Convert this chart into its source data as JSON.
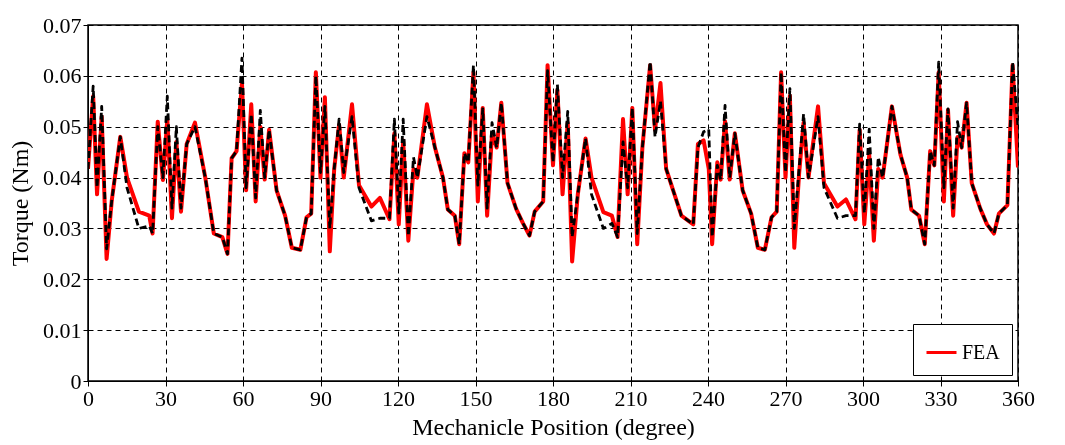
{
  "chart_data": {
    "type": "line",
    "xlabel": "Mechanicle Position (degree)",
    "ylabel": "Torque (Nm)",
    "x": [
      0,
      2,
      3.5,
      5.3,
      7.2,
      9.2,
      12.5,
      15.1,
      19.7,
      23.7,
      25,
      27,
      29,
      30.7,
      32.5,
      34.2,
      36,
      38.2,
      41.4,
      45.4,
      48.7,
      52,
      54,
      55.6,
      57.5,
      59.6,
      61.2,
      63.2,
      64.9,
      66.7,
      68.4,
      70.1,
      73,
      76.3,
      78.9,
      82.2,
      84.6,
      86.4,
      88.2,
      90,
      91.7,
      93.6,
      95.3,
      97.2,
      99,
      102.2,
      104.9,
      109.7,
      113,
      116.7,
      118.6,
      120.3,
      122,
      124,
      126,
      127.5,
      131.2,
      134.3,
      137.4,
      139.3,
      142,
      143.7,
      145.7,
      147.2,
      149.2,
      150.9,
      152.8,
      154.5,
      156.4,
      158.2,
      160,
      162.4,
      165.7,
      168.3,
      170.9,
      172.9,
      176.2,
      177.9,
      180,
      181.7,
      183.7,
      185.7,
      187.4,
      189.6,
      192.6,
      194.9,
      199.5,
      202.8,
      205,
      207.1,
      208.9,
      210.7,
      212.6,
      214.6,
      217.6,
      219.5,
      221.6,
      223.8,
      229.7,
      234.3,
      236.1,
      238.3,
      240.3,
      241.6,
      243.6,
      244.9,
      246.6,
      248.4,
      250.4,
      253.4,
      256.7,
      259.3,
      262,
      264.6,
      266.6,
      268.3,
      270,
      271.7,
      273.4,
      275.3,
      277,
      278.9,
      282.6,
      284.9,
      290.1,
      293.4,
      297.1,
      298.7,
      300.5,
      302.4,
      304.2,
      305.9,
      307.6,
      311.2,
      314.5,
      317.1,
      318.7,
      321.7,
      323.9,
      326,
      327.6,
      329.3,
      331.3,
      332.9,
      334.9,
      336.6,
      338.2,
      340.1,
      342.1,
      345.4,
      348,
      350.7,
      352.6,
      355.9,
      357.9,
      360
    ],
    "series": [
      {
        "name": "FEA",
        "color": "#ff0000",
        "line_style": "solid",
        "values": [
          0.0417,
          0.056,
          0.0367,
          0.052,
          0.024,
          0.0355,
          0.048,
          0.04,
          0.0333,
          0.0325,
          0.029,
          0.051,
          0.0395,
          0.0515,
          0.032,
          0.047,
          0.0333,
          0.0466,
          0.0508,
          0.04,
          0.029,
          0.0283,
          0.025,
          0.0438,
          0.0452,
          0.0586,
          0.0375,
          0.0544,
          0.0353,
          0.05,
          0.0396,
          0.0494,
          0.0375,
          0.0325,
          0.0262,
          0.0258,
          0.0322,
          0.0329,
          0.0607,
          0.04,
          0.0558,
          0.0255,
          0.0417,
          0.0504,
          0.04,
          0.0544,
          0.0385,
          0.0343,
          0.036,
          0.0318,
          0.0487,
          0.0308,
          0.0473,
          0.0276,
          0.0417,
          0.04,
          0.0544,
          0.0459,
          0.04,
          0.0337,
          0.0325,
          0.0269,
          0.0448,
          0.043,
          0.0607,
          0.0353,
          0.0537,
          0.0325,
          0.0487,
          0.0459,
          0.0547,
          0.0389,
          0.0339,
          0.0311,
          0.0286,
          0.0333,
          0.0353,
          0.0621,
          0.0424,
          0.0572,
          0.0367,
          0.0508,
          0.0235,
          0.0367,
          0.0477,
          0.04,
          0.0332,
          0.0325,
          0.0283,
          0.0515,
          0.0367,
          0.0537,
          0.0269,
          0.0459,
          0.0621,
          0.0494,
          0.0586,
          0.0417,
          0.0325,
          0.0308,
          0.0466,
          0.0473,
          0.0417,
          0.0269,
          0.043,
          0.0396,
          0.0511,
          0.0396,
          0.0487,
          0.0375,
          0.0329,
          0.0262,
          0.0258,
          0.0322,
          0.0333,
          0.0607,
          0.04,
          0.0561,
          0.0262,
          0.041,
          0.0508,
          0.04,
          0.054,
          0.0389,
          0.0343,
          0.0357,
          0.0318,
          0.0494,
          0.0308,
          0.0445,
          0.0276,
          0.0417,
          0.04,
          0.054,
          0.0445,
          0.04,
          0.0337,
          0.0325,
          0.0269,
          0.0452,
          0.0424,
          0.0607,
          0.0353,
          0.0533,
          0.0325,
          0.048,
          0.0459,
          0.0547,
          0.0389,
          0.0339,
          0.0308,
          0.029,
          0.0329,
          0.0346,
          0.0621,
          0.042
        ]
      },
      {
        "color": "#000000",
        "line_style": "dashed",
        "values": [
          0.0417,
          0.058,
          0.038,
          0.054,
          0.026,
          0.0355,
          0.048,
          0.038,
          0.03,
          0.0305,
          0.029,
          0.05,
          0.04,
          0.056,
          0.034,
          0.05,
          0.034,
          0.0466,
          0.05,
          0.04,
          0.029,
          0.0283,
          0.025,
          0.0438,
          0.0452,
          0.0635,
          0.038,
          0.0525,
          0.036,
          0.0532,
          0.04,
          0.0494,
          0.0375,
          0.0325,
          0.0262,
          0.0258,
          0.0322,
          0.0329,
          0.06,
          0.041,
          0.054,
          0.03,
          0.0417,
          0.0515,
          0.041,
          0.052,
          0.038,
          0.0315,
          0.032,
          0.032,
          0.0515,
          0.033,
          0.0515,
          0.0285,
          0.044,
          0.04,
          0.052,
          0.0459,
          0.04,
          0.0337,
          0.0325,
          0.0269,
          0.0448,
          0.043,
          0.0621,
          0.0385,
          0.0535,
          0.034,
          0.0508,
          0.0459,
          0.0547,
          0.0389,
          0.0339,
          0.0311,
          0.0286,
          0.0333,
          0.0353,
          0.061,
          0.043,
          0.0583,
          0.04,
          0.053,
          0.0283,
          0.0367,
          0.0477,
          0.0367,
          0.03,
          0.031,
          0.0283,
          0.047,
          0.038,
          0.0537,
          0.029,
          0.0459,
          0.0628,
          0.048,
          0.055,
          0.0417,
          0.0325,
          0.0308,
          0.0459,
          0.049,
          0.0495,
          0.0283,
          0.0424,
          0.0396,
          0.0542,
          0.04,
          0.0487,
          0.0375,
          0.0329,
          0.0262,
          0.0258,
          0.0322,
          0.0333,
          0.0607,
          0.041,
          0.0575,
          0.03,
          0.042,
          0.0525,
          0.04,
          0.052,
          0.038,
          0.032,
          0.0325,
          0.0325,
          0.0505,
          0.033,
          0.0495,
          0.03,
          0.044,
          0.04,
          0.054,
          0.0445,
          0.04,
          0.0337,
          0.0325,
          0.0269,
          0.0452,
          0.0424,
          0.0627,
          0.038,
          0.0535,
          0.034,
          0.051,
          0.0459,
          0.0547,
          0.0389,
          0.0339,
          0.0308,
          0.029,
          0.0329,
          0.0346,
          0.0627,
          0.05
        ]
      }
    ],
    "xlim": [
      0,
      360
    ],
    "xticks": [
      0,
      30,
      60,
      90,
      120,
      150,
      180,
      210,
      240,
      270,
      300,
      330,
      360
    ],
    "ylim": [
      0,
      0.07
    ],
    "yticks": [
      0,
      0.01,
      0.02,
      0.03,
      0.04,
      0.05,
      0.06,
      0.07
    ],
    "grid": true,
    "legend": "bottom right"
  }
}
